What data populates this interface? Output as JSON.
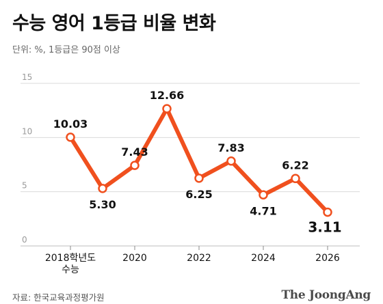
{
  "header": {
    "title": "수능 영어 1등급 비율 변화",
    "subtitle": "단위: %, 1등급은 90점 이상"
  },
  "footer": {
    "source": "자료: 한국교육과정평가원",
    "logo": "The JoongAng"
  },
  "colors": {
    "line": "#f0501e",
    "grid": "#d9d9d9",
    "axis_text": "#999999"
  },
  "chart_data": {
    "type": "line",
    "title": "수능 영어 1등급 비율 변화",
    "subtitle": "단위: %, 1등급은 90점 이상",
    "xlabel": "",
    "ylabel": "",
    "ylim": [
      0,
      15
    ],
    "yticks": [
      0,
      5,
      10,
      15
    ],
    "grid": true,
    "x": [
      2018,
      2019,
      2020,
      2021,
      2022,
      2023,
      2024,
      2025,
      2026
    ],
    "xtick_labels": [
      {
        "x": 2018,
        "lines": [
          "2018학년도",
          "수능"
        ]
      },
      {
        "x": 2020,
        "lines": [
          "2020"
        ]
      },
      {
        "x": 2022,
        "lines": [
          "2022"
        ]
      },
      {
        "x": 2024,
        "lines": [
          "2024"
        ]
      },
      {
        "x": 2026,
        "lines": [
          "2026"
        ]
      }
    ],
    "series": [
      {
        "color": "#f0501e",
        "values": [
          10.03,
          5.3,
          7.43,
          12.66,
          6.25,
          7.83,
          4.71,
          6.22,
          3.11
        ],
        "labels": [
          "10.03",
          "5.30",
          "7.43",
          "12.66",
          "6.25",
          "7.83",
          "4.71",
          "6.22",
          "3.11"
        ],
        "label_pos": [
          "above",
          "below",
          "above",
          "above",
          "below",
          "above",
          "below",
          "above",
          "below"
        ]
      }
    ]
  }
}
